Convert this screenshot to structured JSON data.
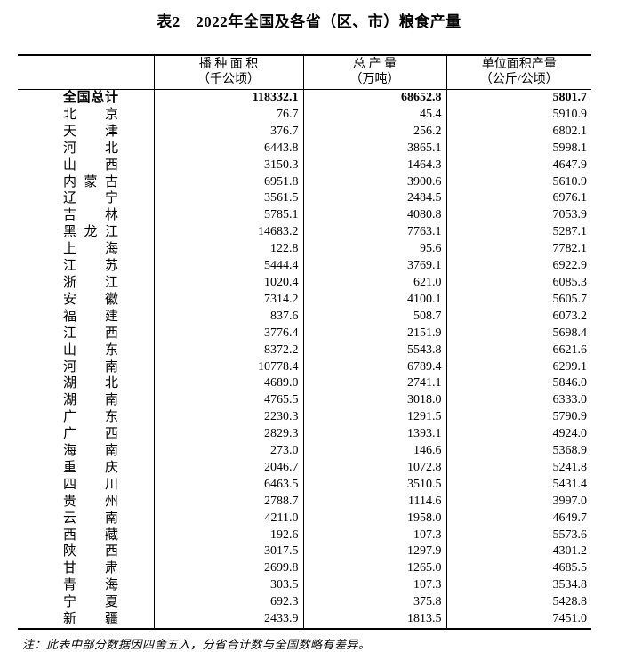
{
  "title": "表2　2022年全国及各省（区、市）粮食产量",
  "columns": [
    {
      "line1": "播 种 面 积",
      "line2": "（千公顷）"
    },
    {
      "line1": "总 产 量",
      "line2": "（万吨）"
    },
    {
      "line1": "单位面积产量",
      "line2": "（公斤/公顷）"
    }
  ],
  "total_row": {
    "name": "全国总计",
    "values": [
      "118332.1",
      "68652.8",
      "5801.7"
    ]
  },
  "rows": [
    {
      "name": "北京",
      "values": [
        "76.7",
        "45.4",
        "5910.9"
      ]
    },
    {
      "name": "天津",
      "values": [
        "376.7",
        "256.2",
        "6802.1"
      ]
    },
    {
      "name": "河北",
      "values": [
        "6443.8",
        "3865.1",
        "5998.1"
      ]
    },
    {
      "name": "山西",
      "values": [
        "3150.3",
        "1464.3",
        "4647.9"
      ]
    },
    {
      "name": "内蒙古",
      "values": [
        "6951.8",
        "3900.6",
        "5610.9"
      ]
    },
    {
      "name": "辽宁",
      "values": [
        "3561.5",
        "2484.5",
        "6976.1"
      ]
    },
    {
      "name": "吉林",
      "values": [
        "5785.1",
        "4080.8",
        "7053.9"
      ]
    },
    {
      "name": "黑龙江",
      "values": [
        "14683.2",
        "7763.1",
        "5287.1"
      ]
    },
    {
      "name": "上海",
      "values": [
        "122.8",
        "95.6",
        "7782.1"
      ]
    },
    {
      "name": "江苏",
      "values": [
        "5444.4",
        "3769.1",
        "6922.9"
      ]
    },
    {
      "name": "浙江",
      "values": [
        "1020.4",
        "621.0",
        "6085.3"
      ]
    },
    {
      "name": "安徽",
      "values": [
        "7314.2",
        "4100.1",
        "5605.7"
      ]
    },
    {
      "name": "福建",
      "values": [
        "837.6",
        "508.7",
        "6073.2"
      ]
    },
    {
      "name": "江西",
      "values": [
        "3776.4",
        "2151.9",
        "5698.4"
      ]
    },
    {
      "name": "山东",
      "values": [
        "8372.2",
        "5543.8",
        "6621.6"
      ]
    },
    {
      "name": "河南",
      "values": [
        "10778.4",
        "6789.4",
        "6299.1"
      ]
    },
    {
      "name": "湖北",
      "values": [
        "4689.0",
        "2741.1",
        "5846.0"
      ]
    },
    {
      "name": "湖南",
      "values": [
        "4765.5",
        "3018.0",
        "6333.0"
      ]
    },
    {
      "name": "广东",
      "values": [
        "2230.3",
        "1291.5",
        "5790.9"
      ]
    },
    {
      "name": "广西",
      "values": [
        "2829.3",
        "1393.1",
        "4924.0"
      ]
    },
    {
      "name": "海南",
      "values": [
        "273.0",
        "146.6",
        "5368.9"
      ]
    },
    {
      "name": "重庆",
      "values": [
        "2046.7",
        "1072.8",
        "5241.8"
      ]
    },
    {
      "name": "四川",
      "values": [
        "6463.5",
        "3510.5",
        "5431.4"
      ]
    },
    {
      "name": "贵州",
      "values": [
        "2788.7",
        "1114.6",
        "3997.0"
      ]
    },
    {
      "name": "云南",
      "values": [
        "4211.0",
        "1958.0",
        "4649.7"
      ]
    },
    {
      "name": "西藏",
      "values": [
        "192.6",
        "107.3",
        "5573.6"
      ]
    },
    {
      "name": "陕西",
      "values": [
        "3017.5",
        "1297.9",
        "4301.2"
      ]
    },
    {
      "name": "甘肃",
      "values": [
        "2699.8",
        "1265.0",
        "4685.5"
      ]
    },
    {
      "name": "青海",
      "values": [
        "303.5",
        "107.3",
        "3534.8"
      ]
    },
    {
      "name": "宁夏",
      "values": [
        "692.3",
        "375.8",
        "5428.8"
      ]
    },
    {
      "name": "新疆",
      "values": [
        "2433.9",
        "1813.5",
        "7451.0"
      ]
    }
  ],
  "note": "注：此表中部分数据因四舍五入，分省合计数与全国数略有差异。"
}
